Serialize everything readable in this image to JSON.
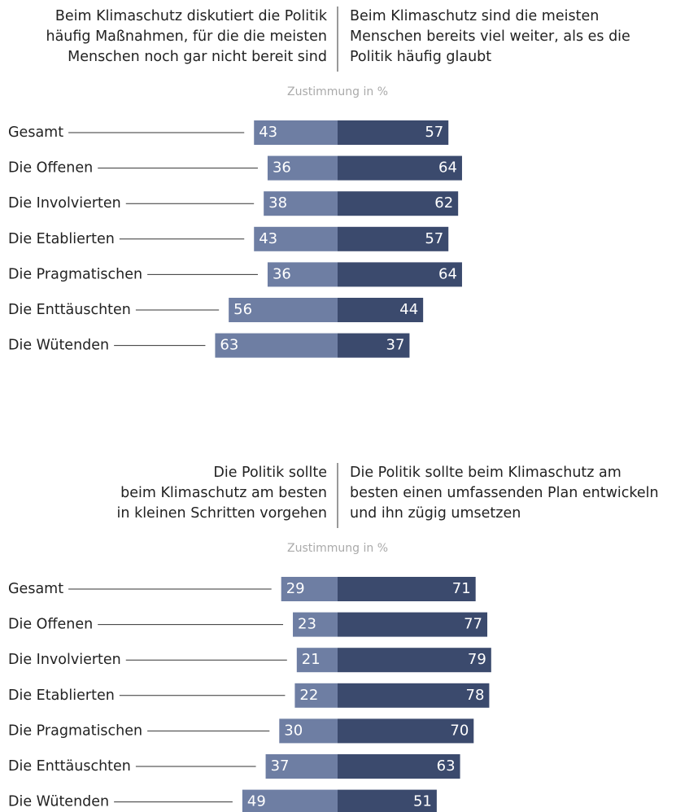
{
  "chart_data": [
    {
      "type": "diverging_bar",
      "subtitle": "Zustimmung in %",
      "categories": [
        "Gesamt",
        "Die Offenen",
        "Die Involvierten",
        "Die Etablierten",
        "Die Pragmatischen",
        "Die Enttäuschten",
        "Die Wütenden"
      ],
      "series": [
        {
          "name_lines": [
            "Beim Klimaschutz diskutiert die Politik",
            "häufig Maßnahmen, für die die meisten",
            "Menschen noch gar nicht bereit sind"
          ],
          "color": "#6e7ea3",
          "values": [
            43,
            36,
            38,
            43,
            36,
            56,
            63
          ]
        },
        {
          "name_lines": [
            "Beim Klimaschutz sind die meisten",
            "Menschen bereits viel weiter, als es die",
            "Politik häufig glaubt"
          ],
          "color": "#3b4a6d",
          "values": [
            57,
            64,
            62,
            57,
            64,
            44,
            37
          ]
        }
      ]
    },
    {
      "type": "diverging_bar",
      "subtitle": "Zustimmung in %",
      "categories": [
        "Gesamt",
        "Die Offenen",
        "Die Involvierten",
        "Die Etablierten",
        "Die Pragmatischen",
        "Die Enttäuschten",
        "Die Wütenden"
      ],
      "series": [
        {
          "name_lines": [
            "Die Politik sollte",
            "beim Klimaschutz am besten",
            "in kleinen Schritten vorgehen"
          ],
          "color": "#6e7ea3",
          "values": [
            29,
            23,
            21,
            22,
            30,
            37,
            49
          ]
        },
        {
          "name_lines": [
            "Die Politik sollte beim Klimaschutz am",
            "besten einen umfassenden Plan entwickeln",
            "und ihn zügig umsetzen"
          ],
          "color": "#3b4a6d",
          "values": [
            71,
            77,
            79,
            78,
            70,
            63,
            51
          ]
        }
      ]
    }
  ]
}
